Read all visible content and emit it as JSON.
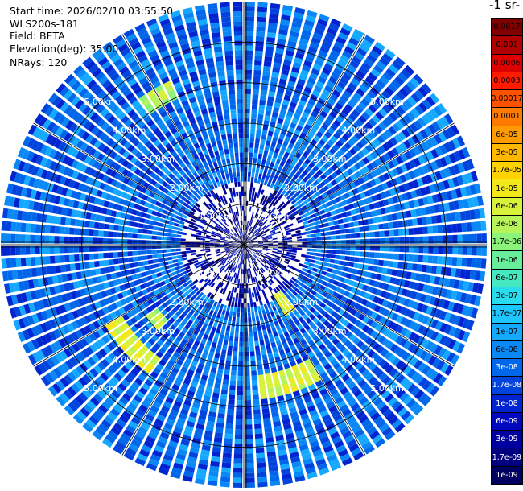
{
  "info": {
    "start_time": "Start time: 2026/02/10 03:55:50",
    "instrument": "WLS200s-181",
    "field": "Field: BETA",
    "elevation": "Elevation(deg): 35.00",
    "nrays": "NRays: 120"
  },
  "colorbar": {
    "unit_label": "-1 sr-",
    "labels": [
      "0.0017",
      "0.001",
      "0.0006",
      "0.0003",
      "0.00017",
      "0.0001",
      "6e-05",
      "3e-05",
      "1.7e-05",
      "1e-05",
      "6e-06",
      "3e-06",
      "1.7e-06",
      "1e-06",
      "6e-07",
      "3e-07",
      "1.7e-07",
      "1e-07",
      "6e-08",
      "3e-08",
      "1.7e-08",
      "1e-08",
      "6e-09",
      "3e-09",
      "1.7e-09",
      "1e-09"
    ],
    "colors": [
      "#800000",
      "#b00000",
      "#dd0000",
      "#ff1a00",
      "#ff5200",
      "#ff7a00",
      "#ff9a00",
      "#ffb800",
      "#ffd200",
      "#f2e81a",
      "#d8f23a",
      "#b6f45a",
      "#8cf27a",
      "#68ee9a",
      "#46e8c0",
      "#28dcee",
      "#1ec6ff",
      "#14a8ff",
      "#0a88f5",
      "#0066ea",
      "#0044dd",
      "#0024d0",
      "#0008bd",
      "#0000a0",
      "#000080",
      "#000060"
    ],
    "light_text_from_index": 19
  },
  "chart_data": {
    "type": "heatmap",
    "projection": "polar",
    "field": "BETA",
    "elevation_deg": 35.0,
    "nrays": 120,
    "range_rings_km": [
      1.0,
      2.0,
      3.0,
      4.0,
      5.0
    ],
    "range_labels": [
      "1.00km",
      "2.00km",
      "3.00km",
      "4.00km",
      "5.00km"
    ],
    "max_range_km": 6.0,
    "scale": "log",
    "value_range": [
      1e-09,
      0.0017
    ],
    "background_value": 3e-08,
    "features": [
      {
        "description": "enhanced backscatter band",
        "azimuth_deg": [
          150,
          175
        ],
        "range_km": [
          3.3,
          3.8
        ],
        "value": 6e-06
      },
      {
        "description": "enhanced backscatter band",
        "azimuth_deg": [
          215,
          240
        ],
        "range_km": [
          3.5,
          4.0
        ],
        "value": 6e-06
      },
      {
        "description": "enhanced backscatter patch",
        "azimuth_deg": [
          140,
          150
        ],
        "range_km": [
          1.5,
          2.0
        ],
        "value": 6e-06
      },
      {
        "description": "enhanced backscatter patch",
        "azimuth_deg": [
          325,
          335
        ],
        "range_km": [
          4.0,
          4.4
        ],
        "value": 3e-06
      },
      {
        "description": "enhanced backscatter patch",
        "azimuth_deg": [
          225,
          235
        ],
        "range_km": [
          2.6,
          3.0
        ],
        "value": 3e-06
      }
    ]
  }
}
